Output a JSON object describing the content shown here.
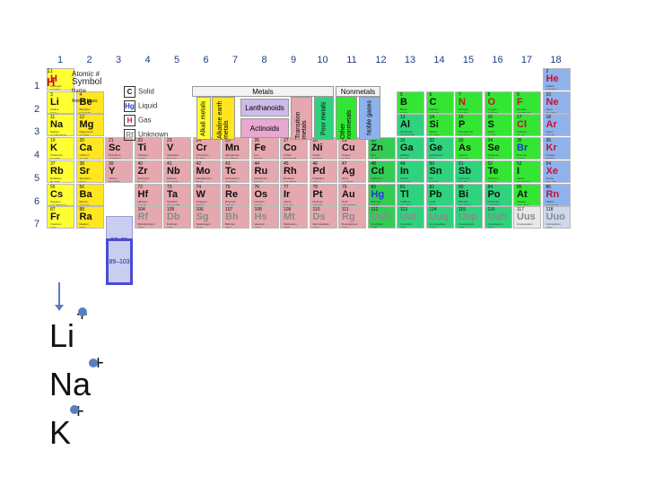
{
  "group_numbers": [
    "1",
    "2",
    "3",
    "4",
    "5",
    "6",
    "7",
    "8",
    "9",
    "10",
    "11",
    "12",
    "13",
    "14",
    "15",
    "16",
    "17",
    "18"
  ],
  "period_numbers": [
    "1",
    "2",
    "3",
    "4",
    "5",
    "6",
    "7"
  ],
  "key": {
    "z": "1",
    "sym": "H",
    "atomic": "Atomic #",
    "symbol": "Symbol",
    "name": "Name",
    "mass": "Atomic Mass"
  },
  "states": [
    {
      "letter": "C",
      "label": "Solid"
    },
    {
      "letter": "Hg",
      "label": "Liquid"
    },
    {
      "letter": "H",
      "label": "Gas"
    },
    {
      "letter": "Rf",
      "label": "Unknown"
    }
  ],
  "categories": {
    "metals": "Metals",
    "nonmetals": "Nonmetals",
    "alkali": "Alkali metals",
    "alkaline": "Alkaline earth metals",
    "lanthanoids": "Lanthanoids",
    "actinoids": "Actinoids",
    "transition": "Transition metals",
    "poor": "Poor metals",
    "other_nonmetals": "Other nonmetals",
    "noble": "Noble gases"
  },
  "lanthanide_ref": "57–71",
  "actinide_ref": "89–103",
  "elements": [
    {
      "z": "1",
      "s": "H",
      "n": "Hydrogen",
      "m": "1.00794",
      "g": 1,
      "p": 1,
      "c": "alkali",
      "st": "gas"
    },
    {
      "z": "2",
      "s": "He",
      "n": "Helium",
      "m": "4.002602",
      "g": 18,
      "p": 1,
      "c": "noble",
      "st": "gas"
    },
    {
      "z": "3",
      "s": "Li",
      "n": "Lithium",
      "m": "6.941",
      "g": 1,
      "p": 2,
      "c": "alkali",
      "st": "solid"
    },
    {
      "z": "4",
      "s": "Be",
      "n": "Beryllium",
      "m": "9.012182",
      "g": 2,
      "p": 2,
      "c": "alkaline",
      "st": "solid"
    },
    {
      "z": "5",
      "s": "B",
      "n": "Boron",
      "m": "10.811",
      "g": 13,
      "p": 2,
      "c": "nonmetal",
      "st": "solid"
    },
    {
      "z": "6",
      "s": "C",
      "n": "Carbon",
      "m": "12.0107",
      "g": 14,
      "p": 2,
      "c": "nonmetal",
      "st": "solid"
    },
    {
      "z": "7",
      "s": "N",
      "n": "Nitrogen",
      "m": "14.0067",
      "g": 15,
      "p": 2,
      "c": "nonmetal",
      "st": "gas"
    },
    {
      "z": "8",
      "s": "O",
      "n": "Oxygen",
      "m": "15.9994",
      "g": 16,
      "p": 2,
      "c": "nonmetal",
      "st": "gas"
    },
    {
      "z": "9",
      "s": "F",
      "n": "Fluorine",
      "m": "18.9984032",
      "g": 17,
      "p": 2,
      "c": "halogen",
      "st": "gas"
    },
    {
      "z": "10",
      "s": "Ne",
      "n": "Neon",
      "m": "20.1797",
      "g": 18,
      "p": 2,
      "c": "noble",
      "st": "gas"
    },
    {
      "z": "11",
      "s": "Na",
      "n": "Sodium",
      "m": "22.98976928",
      "g": 1,
      "p": 3,
      "c": "alkali",
      "st": "solid"
    },
    {
      "z": "12",
      "s": "Mg",
      "n": "Magnesium",
      "m": "24.3050",
      "g": 2,
      "p": 3,
      "c": "alkaline",
      "st": "solid"
    },
    {
      "z": "13",
      "s": "Al",
      "n": "Aluminium",
      "m": "26.9815386",
      "g": 13,
      "p": 3,
      "c": "poor",
      "st": "solid"
    },
    {
      "z": "14",
      "s": "Si",
      "n": "Silicon",
      "m": "28.0855",
      "g": 14,
      "p": 3,
      "c": "nonmetal",
      "st": "solid"
    },
    {
      "z": "15",
      "s": "P",
      "n": "Phosphorus",
      "m": "30.973762",
      "g": 15,
      "p": 3,
      "c": "nonmetal",
      "st": "solid"
    },
    {
      "z": "16",
      "s": "S",
      "n": "Sulfur",
      "m": "32.065",
      "g": 16,
      "p": 3,
      "c": "nonmetal",
      "st": "solid"
    },
    {
      "z": "17",
      "s": "Cl",
      "n": "Chlorine",
      "m": "35.453",
      "g": 17,
      "p": 3,
      "c": "halogen",
      "st": "gas"
    },
    {
      "z": "18",
      "s": "Ar",
      "n": "Argon",
      "m": "39.948",
      "g": 18,
      "p": 3,
      "c": "noble",
      "st": "gas"
    },
    {
      "z": "19",
      "s": "K",
      "n": "Potassium",
      "m": "39.0983",
      "g": 1,
      "p": 4,
      "c": "alkali",
      "st": "solid"
    },
    {
      "z": "20",
      "s": "Ca",
      "n": "Calcium",
      "m": "40.078",
      "g": 2,
      "p": 4,
      "c": "alkaline",
      "st": "solid"
    },
    {
      "z": "21",
      "s": "Sc",
      "n": "Scandium",
      "m": "44.955912",
      "g": 3,
      "p": 4,
      "c": "trans",
      "st": "solid"
    },
    {
      "z": "22",
      "s": "Ti",
      "n": "Titanium",
      "m": "47.867",
      "g": 4,
      "p": 4,
      "c": "trans",
      "st": "solid"
    },
    {
      "z": "23",
      "s": "V",
      "n": "Vanadium",
      "m": "50.9415",
      "g": 5,
      "p": 4,
      "c": "trans",
      "st": "solid"
    },
    {
      "z": "24",
      "s": "Cr",
      "n": "Chromium",
      "m": "51.9961",
      "g": 6,
      "p": 4,
      "c": "trans",
      "st": "solid"
    },
    {
      "z": "25",
      "s": "Mn",
      "n": "Manganese",
      "m": "54.938045",
      "g": 7,
      "p": 4,
      "c": "trans",
      "st": "solid"
    },
    {
      "z": "26",
      "s": "Fe",
      "n": "Iron",
      "m": "55.845",
      "g": 8,
      "p": 4,
      "c": "trans",
      "st": "solid"
    },
    {
      "z": "27",
      "s": "Co",
      "n": "Cobalt",
      "m": "58.933195",
      "g": 9,
      "p": 4,
      "c": "trans",
      "st": "solid"
    },
    {
      "z": "28",
      "s": "Ni",
      "n": "Nickel",
      "m": "58.6934",
      "g": 10,
      "p": 4,
      "c": "trans",
      "st": "solid"
    },
    {
      "z": "29",
      "s": "Cu",
      "n": "Copper",
      "m": "63.546",
      "g": 11,
      "p": 4,
      "c": "trans",
      "st": "solid"
    },
    {
      "z": "30",
      "s": "Zn",
      "n": "Zinc",
      "m": "65.409",
      "g": 12,
      "p": 4,
      "c": "zinc",
      "st": "solid"
    },
    {
      "z": "31",
      "s": "Ga",
      "n": "Gallium",
      "m": "69.723",
      "g": 13,
      "p": 4,
      "c": "poor",
      "st": "solid"
    },
    {
      "z": "32",
      "s": "Ge",
      "n": "Germanium",
      "m": "72.64",
      "g": 14,
      "p": 4,
      "c": "poor",
      "st": "solid"
    },
    {
      "z": "33",
      "s": "As",
      "n": "Arsenic",
      "m": "74.92160",
      "g": 15,
      "p": 4,
      "c": "nonmetal",
      "st": "solid"
    },
    {
      "z": "34",
      "s": "Se",
      "n": "Selenium",
      "m": "78.96",
      "g": 16,
      "p": 4,
      "c": "nonmetal",
      "st": "solid"
    },
    {
      "z": "35",
      "s": "Br",
      "n": "Bromine",
      "m": "79.904",
      "g": 17,
      "p": 4,
      "c": "halogen",
      "st": "liquid"
    },
    {
      "z": "36",
      "s": "Kr",
      "n": "Krypton",
      "m": "83.798",
      "g": 18,
      "p": 4,
      "c": "noble",
      "st": "gas"
    },
    {
      "z": "37",
      "s": "Rb",
      "n": "Rubidium",
      "m": "85.4678",
      "g": 1,
      "p": 5,
      "c": "alkali",
      "st": "solid"
    },
    {
      "z": "38",
      "s": "Sr",
      "n": "Strontium",
      "m": "87.62",
      "g": 2,
      "p": 5,
      "c": "alkaline",
      "st": "solid"
    },
    {
      "z": "39",
      "s": "Y",
      "n": "Yttrium",
      "m": "88.90585",
      "g": 3,
      "p": 5,
      "c": "trans",
      "st": "solid"
    },
    {
      "z": "40",
      "s": "Zr",
      "n": "Zirconium",
      "m": "91.224",
      "g": 4,
      "p": 5,
      "c": "trans",
      "st": "solid"
    },
    {
      "z": "41",
      "s": "Nb",
      "n": "Niobium",
      "m": "92.90638",
      "g": 5,
      "p": 5,
      "c": "trans",
      "st": "solid"
    },
    {
      "z": "42",
      "s": "Mo",
      "n": "Molybdenum",
      "m": "95.94",
      "g": 6,
      "p": 5,
      "c": "trans",
      "st": "solid"
    },
    {
      "z": "43",
      "s": "Tc",
      "n": "Technetium",
      "m": "(97.9072)",
      "g": 7,
      "p": 5,
      "c": "trans",
      "st": "solid"
    },
    {
      "z": "44",
      "s": "Ru",
      "n": "Ruthenium",
      "m": "101.07",
      "g": 8,
      "p": 5,
      "c": "trans",
      "st": "solid"
    },
    {
      "z": "45",
      "s": "Rh",
      "n": "Rhodium",
      "m": "102.90550",
      "g": 9,
      "p": 5,
      "c": "trans",
      "st": "solid"
    },
    {
      "z": "46",
      "s": "Pd",
      "n": "Palladium",
      "m": "106.42",
      "g": 10,
      "p": 5,
      "c": "trans",
      "st": "solid"
    },
    {
      "z": "47",
      "s": "Ag",
      "n": "Silver",
      "m": "107.8682",
      "g": 11,
      "p": 5,
      "c": "trans",
      "st": "solid"
    },
    {
      "z": "48",
      "s": "Cd",
      "n": "Cadmium",
      "m": "112.411",
      "g": 12,
      "p": 5,
      "c": "zinc",
      "st": "solid"
    },
    {
      "z": "49",
      "s": "In",
      "n": "Indium",
      "m": "114.818",
      "g": 13,
      "p": 5,
      "c": "poor",
      "st": "solid"
    },
    {
      "z": "50",
      "s": "Sn",
      "n": "Tin",
      "m": "118.710",
      "g": 14,
      "p": 5,
      "c": "poor",
      "st": "solid"
    },
    {
      "z": "51",
      "s": "Sb",
      "n": "Antimony",
      "m": "121.760",
      "g": 15,
      "p": 5,
      "c": "poor",
      "st": "solid"
    },
    {
      "z": "52",
      "s": "Te",
      "n": "Tellurium",
      "m": "127.60",
      "g": 16,
      "p": 5,
      "c": "nonmetal",
      "st": "solid"
    },
    {
      "z": "53",
      "s": "I",
      "n": "Iodine",
      "m": "126.90447",
      "g": 17,
      "p": 5,
      "c": "halogen",
      "st": "solid"
    },
    {
      "z": "54",
      "s": "Xe",
      "n": "Xenon",
      "m": "131.293",
      "g": 18,
      "p": 5,
      "c": "noble",
      "st": "gas"
    },
    {
      "z": "55",
      "s": "Cs",
      "n": "Caesium",
      "m": "132.9054519",
      "g": 1,
      "p": 6,
      "c": "alkali",
      "st": "solid"
    },
    {
      "z": "56",
      "s": "Ba",
      "n": "Barium",
      "m": "137.327",
      "g": 2,
      "p": 6,
      "c": "alkaline",
      "st": "solid"
    },
    {
      "z": "72",
      "s": "Hf",
      "n": "Hafnium",
      "m": "178.49",
      "g": 4,
      "p": 6,
      "c": "trans",
      "st": "solid"
    },
    {
      "z": "73",
      "s": "Ta",
      "n": "Tantalum",
      "m": "180.94788",
      "g": 5,
      "p": 6,
      "c": "trans",
      "st": "solid"
    },
    {
      "z": "74",
      "s": "W",
      "n": "Tungsten",
      "m": "183.84",
      "g": 6,
      "p": 6,
      "c": "trans",
      "st": "solid"
    },
    {
      "z": "75",
      "s": "Re",
      "n": "Rhenium",
      "m": "186.207",
      "g": 7,
      "p": 6,
      "c": "trans",
      "st": "solid"
    },
    {
      "z": "76",
      "s": "Os",
      "n": "Osmium",
      "m": "190.23",
      "g": 8,
      "p": 6,
      "c": "trans",
      "st": "solid"
    },
    {
      "z": "77",
      "s": "Ir",
      "n": "Iridium",
      "m": "192.217",
      "g": 9,
      "p": 6,
      "c": "trans",
      "st": "solid"
    },
    {
      "z": "78",
      "s": "Pt",
      "n": "Platinum",
      "m": "195.084",
      "g": 10,
      "p": 6,
      "c": "trans",
      "st": "solid"
    },
    {
      "z": "79",
      "s": "Au",
      "n": "Gold",
      "m": "196.966569",
      "g": 11,
      "p": 6,
      "c": "trans",
      "st": "solid"
    },
    {
      "z": "80",
      "s": "Hg",
      "n": "Mercury",
      "m": "200.59",
      "g": 12,
      "p": 6,
      "c": "zinc",
      "st": "liquid"
    },
    {
      "z": "81",
      "s": "Tl",
      "n": "Thallium",
      "m": "204.3833",
      "g": 13,
      "p": 6,
      "c": "poor",
      "st": "solid"
    },
    {
      "z": "82",
      "s": "Pb",
      "n": "Lead",
      "m": "207.2",
      "g": 14,
      "p": 6,
      "c": "poor",
      "st": "solid"
    },
    {
      "z": "83",
      "s": "Bi",
      "n": "Bismuth",
      "m": "208.98040",
      "g": 15,
      "p": 6,
      "c": "poor",
      "st": "solid"
    },
    {
      "z": "84",
      "s": "Po",
      "n": "Polonium",
      "m": "(208.9824)",
      "g": 16,
      "p": 6,
      "c": "poor",
      "st": "solid"
    },
    {
      "z": "85",
      "s": "At",
      "n": "Astatine",
      "m": "(209.9871)",
      "g": 17,
      "p": 6,
      "c": "halogen",
      "st": "solid"
    },
    {
      "z": "86",
      "s": "Rn",
      "n": "Radon",
      "m": "(222.0176)",
      "g": 18,
      "p": 6,
      "c": "noble",
      "st": "gas"
    },
    {
      "z": "87",
      "s": "Fr",
      "n": "Francium",
      "m": "(223)",
      "g": 1,
      "p": 7,
      "c": "alkali",
      "st": "solid"
    },
    {
      "z": "88",
      "s": "Ra",
      "n": "Radium",
      "m": "(226)",
      "g": 2,
      "p": 7,
      "c": "alkaline",
      "st": "solid"
    },
    {
      "z": "104",
      "s": "Rf",
      "n": "Rutherfordium",
      "m": "(261)",
      "g": 4,
      "p": 7,
      "c": "trans",
      "st": "unk"
    },
    {
      "z": "105",
      "s": "Db",
      "n": "Dubnium",
      "m": "(262)",
      "g": 5,
      "p": 7,
      "c": "trans",
      "st": "unk"
    },
    {
      "z": "106",
      "s": "Sg",
      "n": "Seaborgium",
      "m": "(266)",
      "g": 6,
      "p": 7,
      "c": "trans",
      "st": "unk"
    },
    {
      "z": "107",
      "s": "Bh",
      "n": "Bohrium",
      "m": "(264)",
      "g": 7,
      "p": 7,
      "c": "trans",
      "st": "unk"
    },
    {
      "z": "108",
      "s": "Hs",
      "n": "Hassium",
      "m": "(277)",
      "g": 8,
      "p": 7,
      "c": "trans",
      "st": "unk"
    },
    {
      "z": "109",
      "s": "Mt",
      "n": "Meitnerium",
      "m": "(268)",
      "g": 9,
      "p": 7,
      "c": "trans",
      "st": "unk"
    },
    {
      "z": "110",
      "s": "Ds",
      "n": "Darmstadtium",
      "m": "(271)",
      "g": 10,
      "p": 7,
      "c": "trans",
      "st": "unk"
    },
    {
      "z": "111",
      "s": "Rg",
      "n": "Roentgenium",
      "m": "(272)",
      "g": 11,
      "p": 7,
      "c": "trans",
      "st": "unk"
    },
    {
      "z": "112",
      "s": "Uub",
      "n": "Ununbium",
      "m": "(285)",
      "g": 12,
      "p": 7,
      "c": "zinc",
      "st": "unk"
    },
    {
      "z": "113",
      "s": "Uut",
      "n": "Ununtrium",
      "m": "(284)",
      "g": 13,
      "p": 7,
      "c": "poor",
      "st": "unk"
    },
    {
      "z": "114",
      "s": "Uuq",
      "n": "Ununquadium",
      "m": "(289)",
      "g": 14,
      "p": 7,
      "c": "poor",
      "st": "unk"
    },
    {
      "z": "115",
      "s": "Uup",
      "n": "Ununpentium",
      "m": "(288)",
      "g": 15,
      "p": 7,
      "c": "poor",
      "st": "unk"
    },
    {
      "z": "116",
      "s": "Uuh",
      "n": "Ununhexium",
      "m": "(292)",
      "g": 16,
      "p": 7,
      "c": "poor",
      "st": "unk"
    },
    {
      "z": "117",
      "s": "Uus",
      "n": "Ununseptium",
      "m": "",
      "g": 17,
      "p": 7,
      "c": "unknown",
      "st": "unk"
    },
    {
      "z": "118",
      "s": "Uuo",
      "n": "Ununoctium",
      "m": "(294)",
      "g": 18,
      "p": 7,
      "c": "uuo",
      "st": "unk"
    }
  ],
  "ions": [
    {
      "symbol": "Li",
      "charge": "+"
    },
    {
      "symbol": "Na",
      "charge": "+"
    },
    {
      "symbol": "K",
      "charge": "+"
    }
  ]
}
